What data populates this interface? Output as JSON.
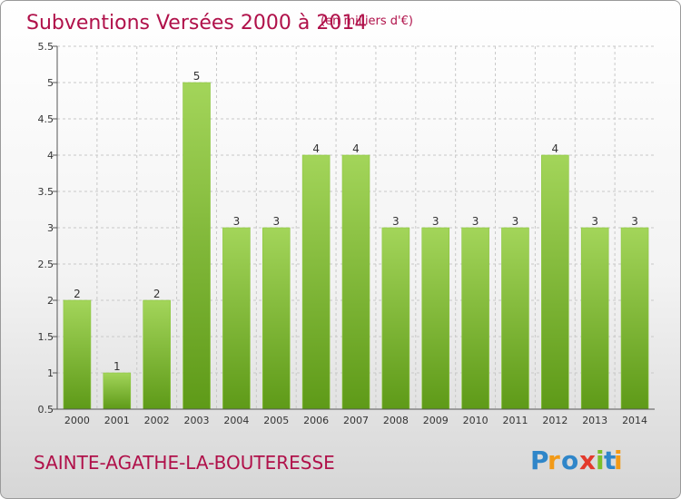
{
  "chart_data": {
    "type": "bar",
    "title": "Subventions Versées 2000 à 2014",
    "subtitle": "(en milliers d'€)",
    "categories": [
      "2000",
      "2001",
      "2002",
      "2003",
      "2004",
      "2005",
      "2006",
      "2007",
      "2008",
      "2009",
      "2010",
      "2011",
      "2012",
      "2013",
      "2014"
    ],
    "values": [
      2,
      1,
      2,
      5,
      3,
      3,
      4,
      4,
      3,
      3,
      3,
      3,
      4,
      3,
      3
    ],
    "value_labels": [
      "2",
      "1",
      "2",
      "5",
      "3",
      "3",
      "4",
      "4",
      "3",
      "3",
      "3",
      "3",
      "4",
      "3",
      "3"
    ],
    "ylim": [
      0.5,
      5.5
    ],
    "yticks": [
      "0.5",
      "1",
      "1.5",
      "2",
      "2.5",
      "3",
      "3.5",
      "4",
      "4.5",
      "5",
      "5.5"
    ],
    "grid": "horizontal dashed",
    "bar_color_top": "#a3d55a",
    "bar_color_bottom": "#5e9a18",
    "title_color": "#b0114a"
  },
  "footer": {
    "place_name": "SAINTE-AGATHE-LA-BOUTERESSE",
    "brand": "Proxiti"
  }
}
